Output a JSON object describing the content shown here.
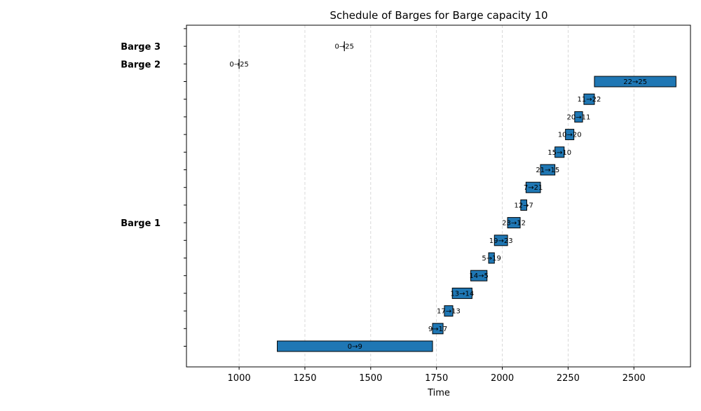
{
  "chart_data": {
    "type": "gantt",
    "title": "Schedule of Barges for Barge capacity 10",
    "xlabel": "Time",
    "ylabel": "",
    "xlim": [
      800,
      2715
    ],
    "xticks": [
      1000,
      1250,
      1500,
      1750,
      2000,
      2250,
      2500
    ],
    "grid": "vertical dashed",
    "bar_color": "#1f77b4",
    "edge_color": "#000000",
    "row_count": 19,
    "barges": [
      {
        "name": "Barge 1",
        "label_row": 8
      },
      {
        "name": "Barge 2",
        "label_row": 17
      },
      {
        "name": "Barge 3",
        "label_row": 18
      }
    ],
    "tasks": [
      {
        "barge": "Barge 3",
        "row": 18,
        "label": "0→25",
        "start": 1400,
        "end": 1400
      },
      {
        "barge": "Barge 2",
        "row": 17,
        "label": "0→25",
        "start": 1000,
        "end": 1000
      },
      {
        "barge": "Barge 1",
        "row": 16,
        "label": "22→25",
        "start": 2350,
        "end": 2660
      },
      {
        "barge": "Barge 1",
        "row": 15,
        "label": "11→22",
        "start": 2310,
        "end": 2350
      },
      {
        "barge": "Barge 1",
        "row": 14,
        "label": "20→11",
        "start": 2275,
        "end": 2305
      },
      {
        "barge": "Barge 1",
        "row": 13,
        "label": "10→20",
        "start": 2240,
        "end": 2272
      },
      {
        "barge": "Barge 1",
        "row": 12,
        "label": "15→10",
        "start": 2200,
        "end": 2235
      },
      {
        "barge": "Barge 1",
        "row": 11,
        "label": "21→15",
        "start": 2145,
        "end": 2200
      },
      {
        "barge": "Barge 1",
        "row": 10,
        "label": "7→21",
        "start": 2090,
        "end": 2145
      },
      {
        "barge": "Barge 1",
        "row": 9,
        "label": "12→7",
        "start": 2070,
        "end": 2093
      },
      {
        "barge": "Barge 1",
        "row": 8,
        "label": "23→12",
        "start": 2020,
        "end": 2068
      },
      {
        "barge": "Barge 1",
        "row": 7,
        "label": "19→23",
        "start": 1970,
        "end": 2020
      },
      {
        "barge": "Barge 1",
        "row": 6,
        "label": "5→19",
        "start": 1948,
        "end": 1970
      },
      {
        "barge": "Barge 1",
        "row": 5,
        "label": "14→5",
        "start": 1880,
        "end": 1942
      },
      {
        "barge": "Barge 1",
        "row": 4,
        "label": "13→14",
        "start": 1810,
        "end": 1885
      },
      {
        "barge": "Barge 1",
        "row": 3,
        "label": "17→13",
        "start": 1780,
        "end": 1812
      },
      {
        "barge": "Barge 1",
        "row": 2,
        "label": "9→17",
        "start": 1735,
        "end": 1775
      },
      {
        "barge": "Barge 1",
        "row": 1,
        "label": "0→9",
        "start": 1145,
        "end": 1735
      }
    ]
  }
}
